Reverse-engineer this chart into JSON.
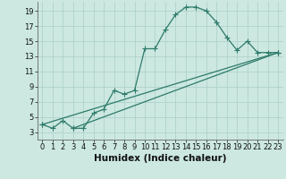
{
  "xlabel": "Humidex (Indice chaleur)",
  "bg_color": "#cce8e0",
  "line_color": "#2d7a6b",
  "grid_color": "#aacfc8",
  "xlim": [
    -0.5,
    23.5
  ],
  "ylim": [
    2.0,
    20.2
  ],
  "xticks": [
    0,
    1,
    2,
    3,
    4,
    5,
    6,
    7,
    8,
    9,
    10,
    11,
    12,
    13,
    14,
    15,
    16,
    17,
    18,
    19,
    20,
    21,
    22,
    23
  ],
  "yticks": [
    3,
    5,
    7,
    9,
    11,
    13,
    15,
    17,
    19
  ],
  "line1_x": [
    0,
    1,
    2,
    3,
    4,
    5,
    6,
    7,
    8,
    9,
    10,
    11,
    12,
    13,
    14,
    15,
    16,
    17,
    18,
    19,
    20,
    21,
    22,
    23
  ],
  "line1_y": [
    4.0,
    3.5,
    4.5,
    3.5,
    3.5,
    5.5,
    6.0,
    8.5,
    8.0,
    8.5,
    14.0,
    14.0,
    16.5,
    18.5,
    19.5,
    19.5,
    19.0,
    17.5,
    15.5,
    13.8,
    15.0,
    13.5,
    13.5,
    13.5
  ],
  "line2_x": [
    0,
    23
  ],
  "line2_y": [
    4.0,
    13.5
  ],
  "line3_x": [
    3,
    23
  ],
  "line3_y": [
    3.5,
    13.5
  ],
  "xlabel_fontsize": 7.5,
  "tick_fontsize": 6.0
}
